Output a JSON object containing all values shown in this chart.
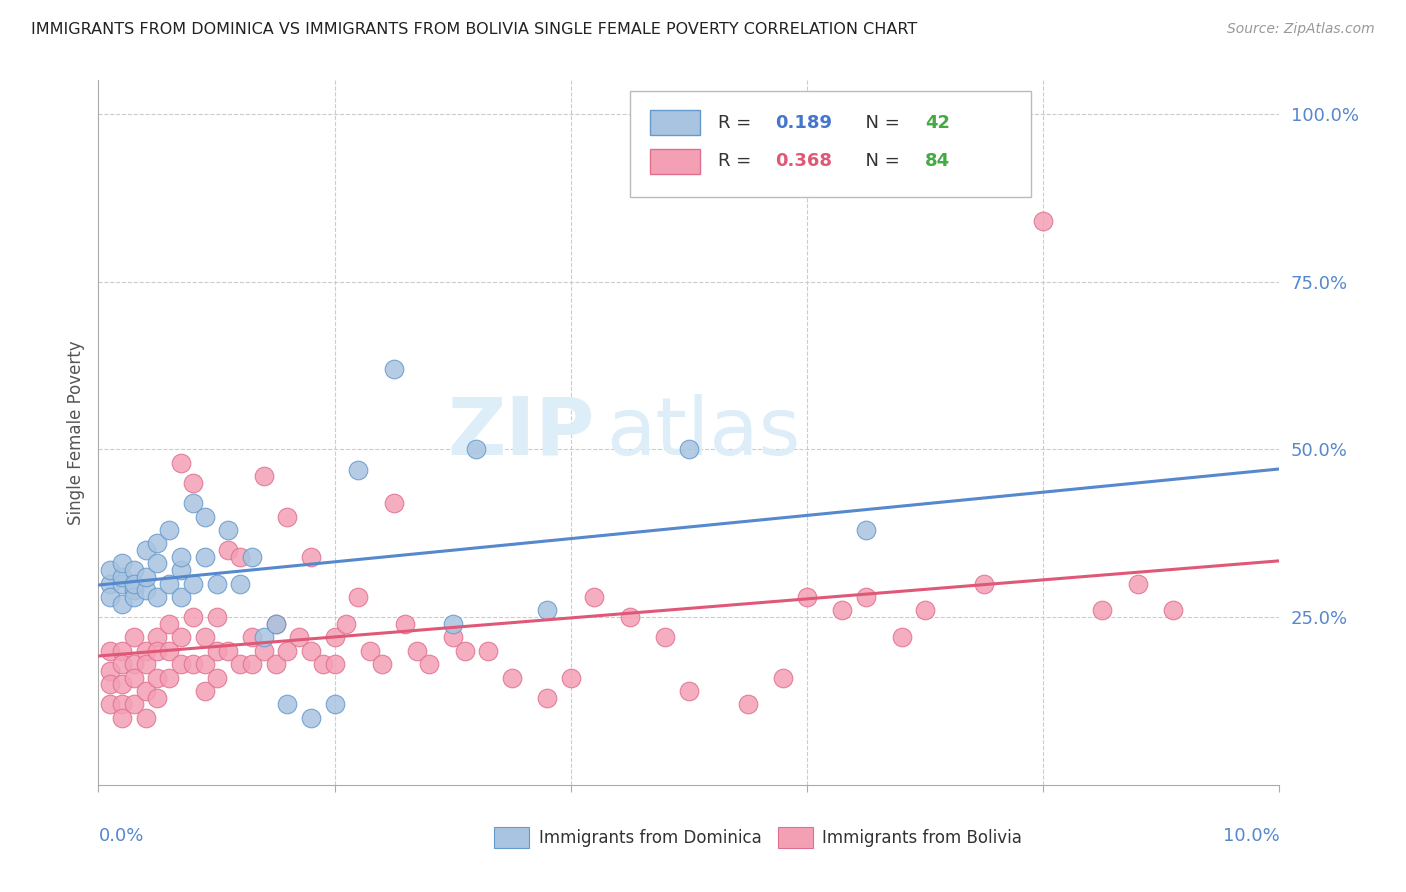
{
  "title": "IMMIGRANTS FROM DOMINICA VS IMMIGRANTS FROM BOLIVIA SINGLE FEMALE POVERTY CORRELATION CHART",
  "source": "Source: ZipAtlas.com",
  "ylabel": "Single Female Poverty",
  "xmin": 0.0,
  "xmax": 0.1,
  "ymin": 0.0,
  "ymax": 1.05,
  "color_dominica": "#a8c4e0",
  "color_bolivia": "#f4a0b4",
  "edge_dominica": "#6699cc",
  "edge_bolivia": "#e07090",
  "trendline_dominica": "#5588cc",
  "trendline_bolivia": "#e05878",
  "R_dominica": 0.189,
  "N_dominica": 42,
  "R_bolivia": 0.368,
  "N_bolivia": 84,
  "dominica_x": [
    0.001,
    0.001,
    0.001,
    0.002,
    0.002,
    0.002,
    0.002,
    0.003,
    0.003,
    0.003,
    0.003,
    0.004,
    0.004,
    0.004,
    0.005,
    0.005,
    0.005,
    0.006,
    0.006,
    0.007,
    0.007,
    0.007,
    0.008,
    0.008,
    0.009,
    0.009,
    0.01,
    0.011,
    0.012,
    0.013,
    0.014,
    0.015,
    0.016,
    0.018,
    0.02,
    0.022,
    0.025,
    0.03,
    0.032,
    0.038,
    0.05,
    0.065
  ],
  "dominica_y": [
    0.3,
    0.32,
    0.28,
    0.3,
    0.31,
    0.27,
    0.33,
    0.29,
    0.32,
    0.28,
    0.3,
    0.35,
    0.29,
    0.31,
    0.33,
    0.28,
    0.36,
    0.3,
    0.38,
    0.32,
    0.28,
    0.34,
    0.3,
    0.42,
    0.34,
    0.4,
    0.3,
    0.38,
    0.3,
    0.34,
    0.22,
    0.24,
    0.12,
    0.1,
    0.12,
    0.47,
    0.62,
    0.24,
    0.5,
    0.26,
    0.5,
    0.38
  ],
  "bolivia_x": [
    0.001,
    0.001,
    0.001,
    0.001,
    0.002,
    0.002,
    0.002,
    0.002,
    0.002,
    0.003,
    0.003,
    0.003,
    0.003,
    0.004,
    0.004,
    0.004,
    0.004,
    0.005,
    0.005,
    0.005,
    0.005,
    0.006,
    0.006,
    0.006,
    0.007,
    0.007,
    0.007,
    0.008,
    0.008,
    0.008,
    0.009,
    0.009,
    0.009,
    0.01,
    0.01,
    0.01,
    0.011,
    0.011,
    0.012,
    0.012,
    0.013,
    0.013,
    0.014,
    0.014,
    0.015,
    0.015,
    0.016,
    0.016,
    0.017,
    0.018,
    0.018,
    0.019,
    0.02,
    0.02,
    0.021,
    0.022,
    0.023,
    0.024,
    0.025,
    0.026,
    0.027,
    0.028,
    0.03,
    0.031,
    0.033,
    0.035,
    0.038,
    0.04,
    0.042,
    0.045,
    0.048,
    0.05,
    0.055,
    0.058,
    0.06,
    0.063,
    0.065,
    0.068,
    0.07,
    0.075,
    0.08,
    0.085,
    0.088,
    0.091
  ],
  "bolivia_y": [
    0.2,
    0.17,
    0.15,
    0.12,
    0.2,
    0.18,
    0.15,
    0.12,
    0.1,
    0.22,
    0.18,
    0.16,
    0.12,
    0.2,
    0.18,
    0.14,
    0.1,
    0.22,
    0.2,
    0.16,
    0.13,
    0.24,
    0.2,
    0.16,
    0.48,
    0.22,
    0.18,
    0.25,
    0.45,
    0.18,
    0.22,
    0.18,
    0.14,
    0.25,
    0.2,
    0.16,
    0.35,
    0.2,
    0.34,
    0.18,
    0.22,
    0.18,
    0.46,
    0.2,
    0.24,
    0.18,
    0.4,
    0.2,
    0.22,
    0.34,
    0.2,
    0.18,
    0.22,
    0.18,
    0.24,
    0.28,
    0.2,
    0.18,
    0.42,
    0.24,
    0.2,
    0.18,
    0.22,
    0.2,
    0.2,
    0.16,
    0.13,
    0.16,
    0.28,
    0.25,
    0.22,
    0.14,
    0.12,
    0.16,
    0.28,
    0.26,
    0.28,
    0.22,
    0.26,
    0.3,
    0.84,
    0.26,
    0.3,
    0.26
  ]
}
